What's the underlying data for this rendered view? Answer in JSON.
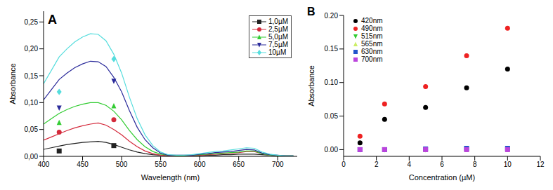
{
  "chart_data": [
    {
      "type": "line",
      "title": "A",
      "xlabel": "Wavelength (nm)",
      "ylabel": "Absorbance",
      "x": [
        400,
        410,
        420,
        430,
        440,
        450,
        460,
        470,
        480,
        490,
        500,
        510,
        520,
        530,
        540,
        550,
        560,
        570,
        580,
        590,
        600,
        610,
        620,
        630,
        640,
        650,
        660,
        670,
        680,
        690,
        700,
        710,
        720
      ],
      "xlim": [
        400,
        725
      ],
      "xticks": [
        400,
        450,
        500,
        550,
        600,
        650,
        700
      ],
      "ylim": [
        0,
        0.27
      ],
      "yticks": [
        {
          "value": 0,
          "label": "0,00"
        },
        {
          "value": 0.05,
          "label": "0,05"
        },
        {
          "value": 0.1,
          "label": "0,10"
        },
        {
          "value": 0.15,
          "label": "0,15"
        },
        {
          "value": 0.2,
          "label": "0,20"
        },
        {
          "value": 0.25,
          "label": "0,25"
        }
      ],
      "legend": "upper right",
      "marker_x": [
        420,
        490
      ],
      "series": [
        {
          "name": "1,0µM",
          "color": "#222222",
          "marker": "square",
          "values": [
            0.013,
            0.016,
            0.019,
            0.022,
            0.024,
            0.026,
            0.027,
            0.028,
            0.026,
            0.022,
            0.017,
            0.012,
            0.008,
            0.005,
            0.003,
            0.002,
            0.001,
            0.001,
            0.001,
            0.001,
            0.001,
            0.002,
            0.002,
            0.003,
            0.003,
            0.004,
            0.004,
            0.004,
            0.003,
            0.002,
            0.001,
            0.001,
            0.001
          ],
          "marker_values": [
            0.01,
            0.02
          ]
        },
        {
          "name": "2,5µM",
          "color": "#d42a3c",
          "marker": "circle",
          "values": [
            0.03,
            0.036,
            0.042,
            0.048,
            0.053,
            0.057,
            0.06,
            0.062,
            0.058,
            0.05,
            0.04,
            0.028,
            0.018,
            0.01,
            0.005,
            0.002,
            0.001,
            0.001,
            0.001,
            0.001,
            0.002,
            0.003,
            0.004,
            0.005,
            0.006,
            0.007,
            0.009,
            0.009,
            0.005,
            0.002,
            0.001,
            0.001,
            0.001
          ],
          "marker_values": [
            0.045,
            0.068
          ]
        },
        {
          "name": "5,0µM",
          "color": "#33cc33",
          "marker": "triangle-up",
          "values": [
            0.06,
            0.07,
            0.08,
            0.087,
            0.093,
            0.097,
            0.1,
            0.1,
            0.095,
            0.084,
            0.068,
            0.048,
            0.031,
            0.018,
            0.009,
            0.004,
            0.002,
            0.001,
            0.001,
            0.002,
            0.003,
            0.004,
            0.005,
            0.006,
            0.007,
            0.008,
            0.01,
            0.01,
            0.005,
            0.002,
            0.001,
            0.001,
            0.001
          ],
          "marker_values": [
            0.063,
            0.094
          ]
        },
        {
          "name": "7,5µM",
          "color": "#2a2a9a",
          "marker": "triangle-down",
          "values": [
            0.105,
            0.124,
            0.143,
            0.155,
            0.165,
            0.172,
            0.177,
            0.176,
            0.167,
            0.147,
            0.12,
            0.085,
            0.054,
            0.031,
            0.016,
            0.006,
            0.002,
            0.002,
            0.002,
            0.002,
            0.004,
            0.005,
            0.007,
            0.008,
            0.009,
            0.011,
            0.013,
            0.012,
            0.006,
            0.003,
            0.002,
            0.001,
            0.001
          ],
          "marker_values": [
            0.09,
            0.14
          ]
        },
        {
          "name": "10µM",
          "color": "#55dddd",
          "marker": "diamond",
          "values": [
            0.135,
            0.16,
            0.185,
            0.2,
            0.213,
            0.222,
            0.228,
            0.227,
            0.215,
            0.19,
            0.155,
            0.11,
            0.07,
            0.04,
            0.02,
            0.008,
            0.003,
            0.002,
            0.002,
            0.003,
            0.005,
            0.007,
            0.009,
            0.01,
            0.012,
            0.014,
            0.016,
            0.015,
            0.008,
            0.004,
            0.002,
            0.001,
            0.001
          ],
          "marker_values": [
            0.12,
            0.181
          ]
        }
      ]
    },
    {
      "type": "scatter",
      "title": "B",
      "xlabel": "Concentration (µM)",
      "ylabel": "Absorbance",
      "x": [
        1,
        2.5,
        5,
        7.5,
        10
      ],
      "xlim": [
        0,
        12
      ],
      "xticks": [
        0,
        2,
        4,
        6,
        8,
        10,
        12
      ],
      "ylim": [
        -0.01,
        0.2
      ],
      "yticks": [
        {
          "value": 0,
          "label": "0.00"
        },
        {
          "value": 0.05,
          "label": "0.05"
        },
        {
          "value": 0.1,
          "label": "0.10"
        },
        {
          "value": 0.15,
          "label": "0.15"
        },
        {
          "value": 0.2,
          "label": "0.20"
        }
      ],
      "legend": "upper left",
      "series": [
        {
          "name": "420nm",
          "color": "#000000",
          "marker": "circle",
          "values": [
            0.01,
            0.045,
            0.063,
            0.092,
            0.12
          ]
        },
        {
          "name": "490nm",
          "color": "#ee2222",
          "marker": "circle",
          "values": [
            0.02,
            0.068,
            0.094,
            0.14,
            0.181
          ]
        },
        {
          "name": "515nm",
          "color": "#33cc33",
          "marker": "triangle-down",
          "values": [
            0,
            0,
            0,
            0.001,
            0.001
          ]
        },
        {
          "name": "565nm",
          "color": "#ccee66",
          "marker": "triangle-up",
          "values": [
            0,
            0,
            0,
            0,
            0
          ]
        },
        {
          "name": "630nm",
          "color": "#2255cc",
          "marker": "square",
          "values": [
            0,
            0,
            0.001,
            0.002,
            0.002
          ]
        },
        {
          "name": "700nm",
          "color": "#bb44dd",
          "marker": "square",
          "values": [
            0,
            0,
            0,
            0,
            0
          ]
        }
      ]
    }
  ]
}
